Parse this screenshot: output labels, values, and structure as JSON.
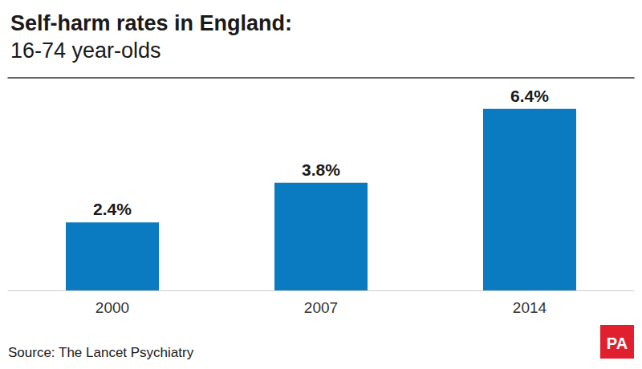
{
  "chart_data": {
    "type": "bar",
    "title": "Self-harm rates in England:",
    "subtitle": "16-74 year-olds",
    "categories": [
      "2000",
      "2007",
      "2014"
    ],
    "values": [
      2.4,
      3.8,
      6.4
    ],
    "value_labels": [
      "2.4%",
      "3.8%",
      "6.4%"
    ],
    "color": "#0a7bc1",
    "ylim": [
      0,
      7.5
    ],
    "yticks": [],
    "grid": false,
    "data_labels": true,
    "tick_labels": "x",
    "source": "Source: The Lancet Psychiatry",
    "logo": "PA"
  }
}
